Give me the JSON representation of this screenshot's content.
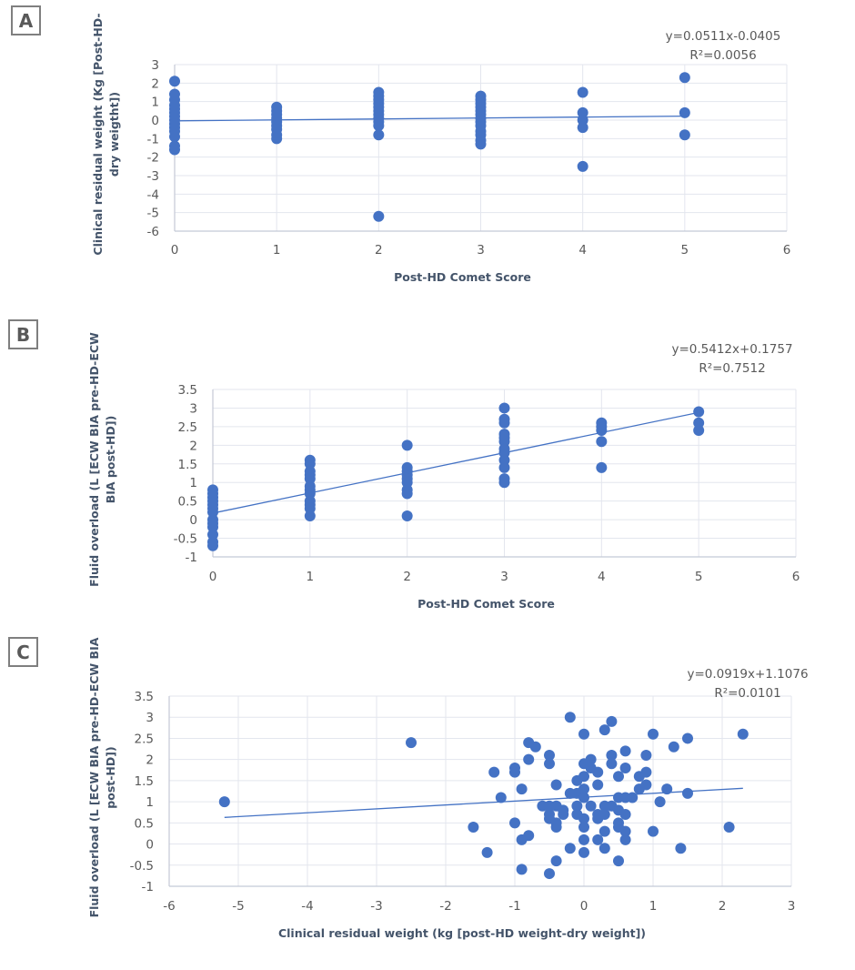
{
  "chart_data": [
    {
      "panel": "A",
      "type": "scatter",
      "xlabel": "Post-HD Comet Score",
      "ylabel_lines": [
        "Clinical residual weight (Kg [Post-HD-",
        "dry weigtht])"
      ],
      "xlim": [
        0,
        6
      ],
      "ylim": [
        -6,
        3
      ],
      "xticks": [
        0,
        1,
        2,
        3,
        4,
        5,
        6
      ],
      "yticks": [
        3,
        2,
        1,
        0,
        -1,
        -2,
        -3,
        -4,
        -5,
        -6
      ],
      "grid": true,
      "trendline": {
        "slope": 0.0511,
        "intercept": -0.0405,
        "x_range": [
          0,
          5
        ]
      },
      "equation": "y=0.0511x-0.0405",
      "r_squared": "R²=0.0056",
      "points": [
        [
          0,
          2.1
        ],
        [
          0,
          1.4
        ],
        [
          0,
          1.1
        ],
        [
          0,
          0.8
        ],
        [
          0,
          0.6
        ],
        [
          0,
          0.4
        ],
        [
          0,
          0.2
        ],
        [
          0,
          0.0
        ],
        [
          0,
          -0.2
        ],
        [
          0,
          -0.4
        ],
        [
          0,
          -0.6
        ],
        [
          0,
          -0.9
        ],
        [
          0,
          -1.4
        ],
        [
          0,
          -1.6
        ],
        [
          1,
          0.7
        ],
        [
          1,
          0.5
        ],
        [
          1,
          0.3
        ],
        [
          1,
          0.1
        ],
        [
          1,
          -0.1
        ],
        [
          1,
          -0.3
        ],
        [
          1,
          -0.5
        ],
        [
          1,
          -0.8
        ],
        [
          1,
          -1.0
        ],
        [
          2,
          1.5
        ],
        [
          2,
          1.3
        ],
        [
          2,
          1.1
        ],
        [
          2,
          0.9
        ],
        [
          2,
          0.7
        ],
        [
          2,
          0.5
        ],
        [
          2,
          0.3
        ],
        [
          2,
          0.1
        ],
        [
          2,
          -0.1
        ],
        [
          2,
          -0.3
        ],
        [
          2,
          -0.8
        ],
        [
          2,
          -5.2
        ],
        [
          3,
          1.3
        ],
        [
          3,
          1.1
        ],
        [
          3,
          0.9
        ],
        [
          3,
          0.7
        ],
        [
          3,
          0.5
        ],
        [
          3,
          0.3
        ],
        [
          3,
          0.1
        ],
        [
          3,
          -0.1
        ],
        [
          3,
          -0.3
        ],
        [
          3,
          -0.6
        ],
        [
          3,
          -0.8
        ],
        [
          3,
          -1.1
        ],
        [
          3,
          -1.3
        ],
        [
          4,
          1.5
        ],
        [
          4,
          0.4
        ],
        [
          4,
          0.0
        ],
        [
          4,
          -0.4
        ],
        [
          4,
          -2.5
        ],
        [
          5,
          2.3
        ],
        [
          5,
          0.4
        ],
        [
          5,
          -0.8
        ]
      ]
    },
    {
      "panel": "B",
      "type": "scatter",
      "xlabel": "Post-HD Comet Score",
      "ylabel_lines": [
        "Fluid overload (L [ECW BIA pre-HD-ECW",
        "BIA post-HD])"
      ],
      "xlim": [
        0,
        6
      ],
      "ylim": [
        -1,
        3.5
      ],
      "xticks": [
        0,
        1,
        2,
        3,
        4,
        5,
        6
      ],
      "yticks": [
        3.5,
        3,
        2.5,
        2,
        1.5,
        1,
        0.5,
        0,
        -0.5,
        -1
      ],
      "grid": true,
      "trendline": {
        "slope": 0.5412,
        "intercept": 0.1757,
        "x_range": [
          0,
          5
        ]
      },
      "equation": "y=0.5412x+0.1757",
      "r_squared": "R²=0.7512",
      "points": [
        [
          0,
          0.8
        ],
        [
          0,
          0.7
        ],
        [
          0,
          0.6
        ],
        [
          0,
          0.5
        ],
        [
          0,
          0.4
        ],
        [
          0,
          0.3
        ],
        [
          0,
          0.2
        ],
        [
          0,
          0.0
        ],
        [
          0,
          -0.1
        ],
        [
          0,
          -0.2
        ],
        [
          0,
          -0.4
        ],
        [
          0,
          -0.6
        ],
        [
          0,
          -0.7
        ],
        [
          1,
          1.6
        ],
        [
          1,
          1.5
        ],
        [
          1,
          1.3
        ],
        [
          1,
          1.2
        ],
        [
          1,
          1.1
        ],
        [
          1,
          0.9
        ],
        [
          1,
          0.8
        ],
        [
          1,
          0.7
        ],
        [
          1,
          0.5
        ],
        [
          1,
          0.4
        ],
        [
          1,
          0.3
        ],
        [
          1,
          0.1
        ],
        [
          2,
          2.0
        ],
        [
          2,
          1.4
        ],
        [
          2,
          1.3
        ],
        [
          2,
          1.2
        ],
        [
          2,
          1.1
        ],
        [
          2,
          1.0
        ],
        [
          2,
          0.8
        ],
        [
          2,
          0.7
        ],
        [
          2,
          0.1
        ],
        [
          3,
          3.0
        ],
        [
          3,
          2.7
        ],
        [
          3,
          2.6
        ],
        [
          3,
          2.3
        ],
        [
          3,
          2.2
        ],
        [
          3,
          2.1
        ],
        [
          3,
          1.9
        ],
        [
          3,
          1.8
        ],
        [
          3,
          1.6
        ],
        [
          3,
          1.4
        ],
        [
          3,
          1.1
        ],
        [
          3,
          1.0
        ],
        [
          4,
          2.6
        ],
        [
          4,
          2.5
        ],
        [
          4,
          2.4
        ],
        [
          4,
          2.1
        ],
        [
          4,
          1.4
        ],
        [
          5,
          2.9
        ],
        [
          5,
          2.6
        ],
        [
          5,
          2.4
        ]
      ]
    },
    {
      "panel": "C",
      "type": "scatter",
      "xlabel": "Clinical residual weight (kg [post-HD weight-dry weight])",
      "ylabel_lines": [
        "Fluid overload (L [ECW BIA pre-HD-ECW BIA",
        "post-HD])"
      ],
      "xlim": [
        -6,
        3
      ],
      "ylim": [
        -1,
        3.5
      ],
      "xticks": [
        -6,
        -5,
        -4,
        -3,
        -2,
        -1,
        0,
        1,
        2,
        3
      ],
      "yticks": [
        3.5,
        3,
        2.5,
        2,
        1.5,
        1,
        0.5,
        0,
        -0.5,
        -1
      ],
      "grid": true,
      "trendline": {
        "slope": 0.0919,
        "intercept": 1.1076,
        "x_range": [
          -5.2,
          2.3
        ]
      },
      "equation": "y=0.0919x+1.1076",
      "r_squared": "R²=0.0101",
      "points": [
        [
          -5.2,
          1.0
        ],
        [
          -2.5,
          2.4
        ],
        [
          -1.6,
          0.4
        ],
        [
          -1.4,
          -0.2
        ],
        [
          -1.3,
          1.7
        ],
        [
          -1.2,
          1.1
        ],
        [
          -1.0,
          1.8
        ],
        [
          -1.0,
          1.7
        ],
        [
          -1.0,
          0.5
        ],
        [
          -0.9,
          1.3
        ],
        [
          -0.9,
          0.1
        ],
        [
          -0.9,
          -0.6
        ],
        [
          -0.8,
          2.4
        ],
        [
          -0.8,
          2.0
        ],
        [
          -0.8,
          0.2
        ],
        [
          -0.7,
          2.3
        ],
        [
          -0.6,
          0.9
        ],
        [
          -0.5,
          2.1
        ],
        [
          -0.5,
          1.9
        ],
        [
          -0.5,
          0.9
        ],
        [
          -0.5,
          0.7
        ],
        [
          -0.5,
          0.6
        ],
        [
          -0.5,
          -0.7
        ],
        [
          -0.4,
          1.4
        ],
        [
          -0.4,
          0.9
        ],
        [
          -0.4,
          0.5
        ],
        [
          -0.4,
          0.4
        ],
        [
          -0.4,
          -0.4
        ],
        [
          -0.3,
          0.8
        ],
        [
          -0.3,
          0.7
        ],
        [
          -0.2,
          3.0
        ],
        [
          -0.2,
          1.2
        ],
        [
          -0.2,
          -0.1
        ],
        [
          -0.1,
          1.5
        ],
        [
          -0.1,
          1.2
        ],
        [
          -0.1,
          0.9
        ],
        [
          -0.1,
          0.7
        ],
        [
          0.0,
          2.6
        ],
        [
          0.0,
          1.9
        ],
        [
          0.0,
          1.6
        ],
        [
          0.0,
          1.3
        ],
        [
          0.0,
          1.1
        ],
        [
          0.0,
          0.6
        ],
        [
          0.0,
          0.4
        ],
        [
          0.0,
          0.1
        ],
        [
          0.0,
          -0.2
        ],
        [
          0.1,
          2.0
        ],
        [
          0.1,
          1.8
        ],
        [
          0.1,
          0.9
        ],
        [
          0.2,
          1.7
        ],
        [
          0.2,
          1.4
        ],
        [
          0.2,
          0.7
        ],
        [
          0.2,
          0.6
        ],
        [
          0.2,
          0.1
        ],
        [
          0.3,
          2.7
        ],
        [
          0.3,
          0.9
        ],
        [
          0.3,
          0.7
        ],
        [
          0.3,
          0.3
        ],
        [
          0.3,
          -0.1
        ],
        [
          0.4,
          2.9
        ],
        [
          0.4,
          2.1
        ],
        [
          0.4,
          1.9
        ],
        [
          0.4,
          0.9
        ],
        [
          0.5,
          1.6
        ],
        [
          0.5,
          1.1
        ],
        [
          0.5,
          0.8
        ],
        [
          0.5,
          0.5
        ],
        [
          0.5,
          0.4
        ],
        [
          0.5,
          -0.4
        ],
        [
          0.6,
          2.2
        ],
        [
          0.6,
          1.8
        ],
        [
          0.6,
          1.1
        ],
        [
          0.6,
          0.7
        ],
        [
          0.6,
          0.3
        ],
        [
          0.6,
          0.1
        ],
        [
          0.7,
          1.1
        ],
        [
          0.8,
          1.6
        ],
        [
          0.8,
          1.3
        ],
        [
          0.9,
          2.1
        ],
        [
          0.9,
          1.7
        ],
        [
          0.9,
          1.4
        ],
        [
          1.0,
          2.6
        ],
        [
          1.0,
          0.3
        ],
        [
          1.1,
          1.0
        ],
        [
          1.2,
          1.3
        ],
        [
          1.3,
          2.3
        ],
        [
          1.4,
          -0.1
        ],
        [
          1.5,
          2.5
        ],
        [
          1.5,
          1.2
        ],
        [
          2.1,
          0.4
        ],
        [
          2.3,
          2.6
        ]
      ]
    }
  ],
  "panels": [
    {
      "letter": "A"
    },
    {
      "letter": "B"
    },
    {
      "letter": "C"
    }
  ],
  "colors": {
    "marker": "#4472c4",
    "trendline": "#4472c4",
    "grid": "#e3e6ee",
    "text": "#595959",
    "axis_title": "#44546a"
  }
}
